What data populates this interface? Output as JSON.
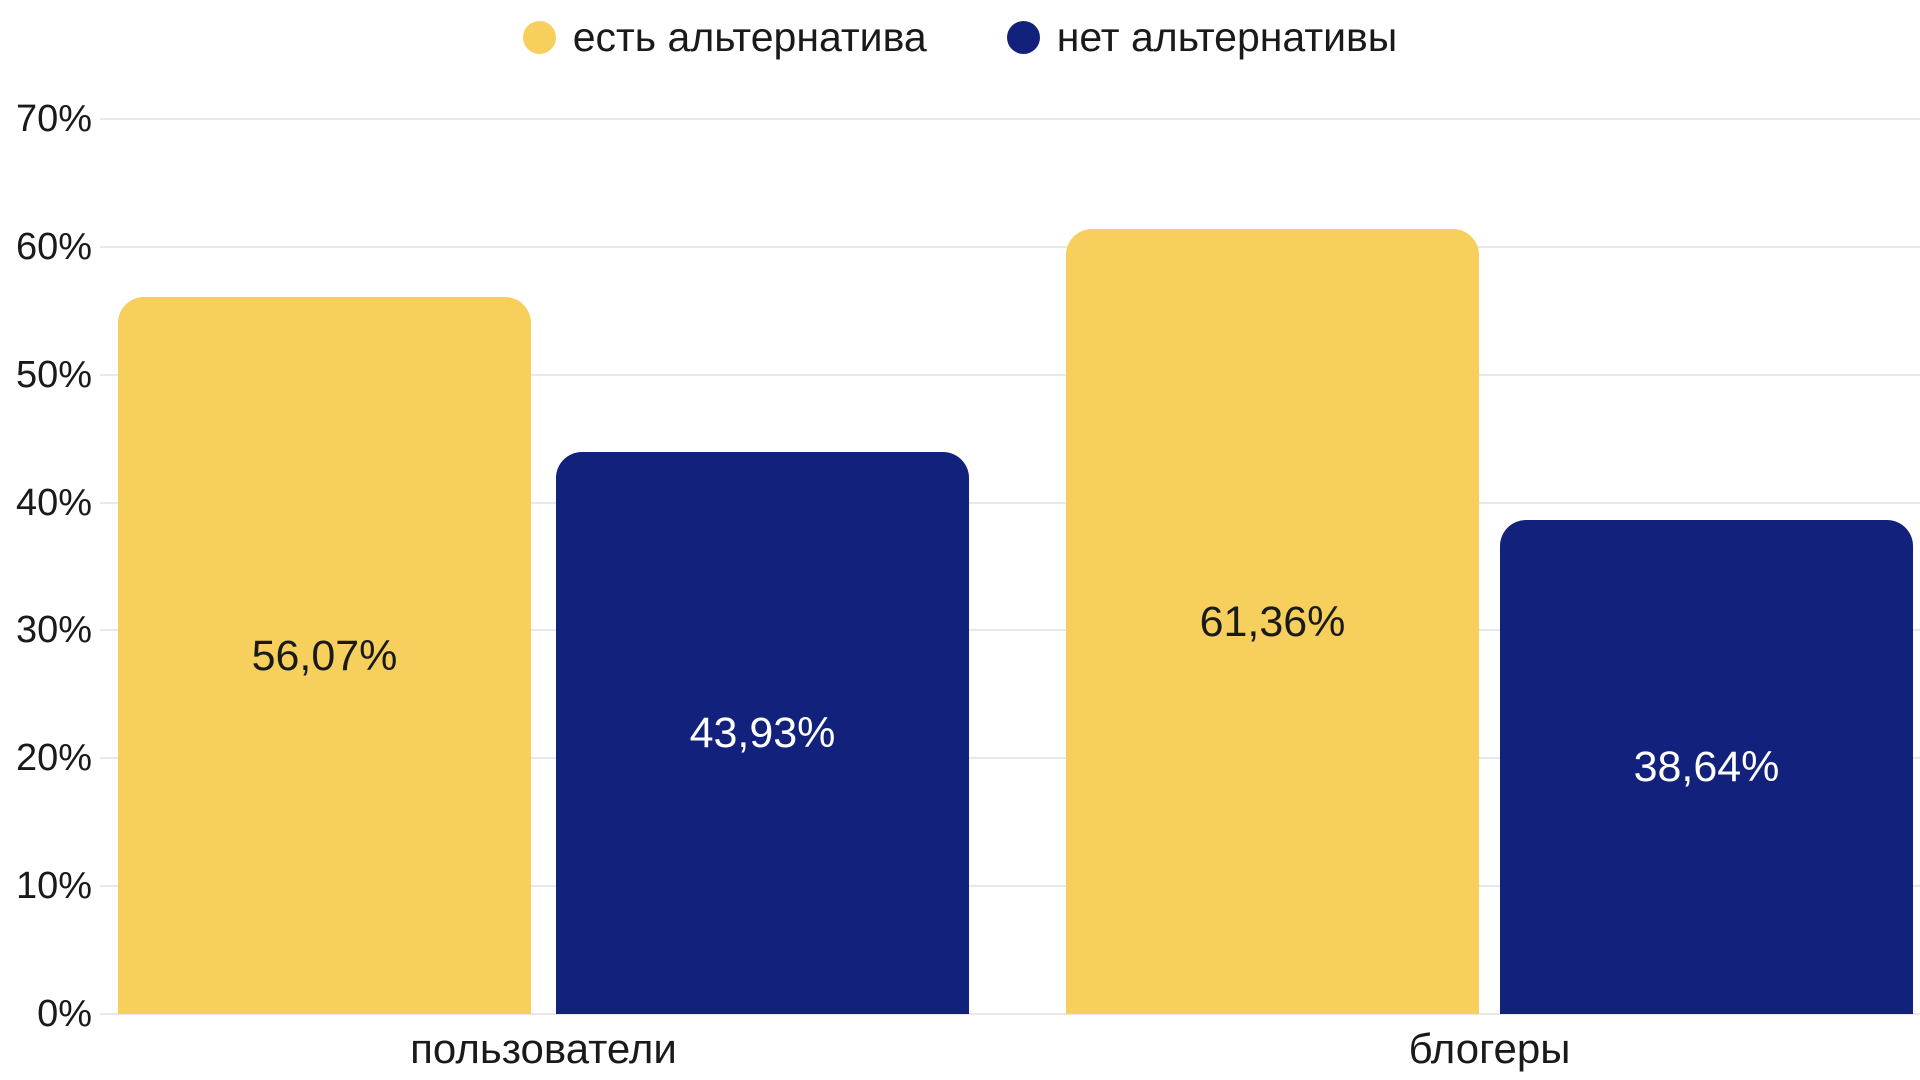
{
  "chart_data": {
    "type": "bar",
    "title": "",
    "categories": [
      "пользователи",
      "блогеры"
    ],
    "series": [
      {
        "name": "есть альтернатива",
        "values": [
          56.07,
          61.36
        ],
        "value_labels": [
          "56,07%",
          "61,36%"
        ],
        "color": "#F6CF5D",
        "value_label_color": "#1A1A1A"
      },
      {
        "name": "нет альтернативы",
        "values": [
          43.93,
          38.64
        ],
        "value_labels": [
          "43,93%",
          "38,64%"
        ],
        "color": "#12217B",
        "value_label_color": "#FFFFFF"
      }
    ],
    "ylim": [
      0,
      70
    ],
    "y_ticks": [
      {
        "value": 70,
        "label": "70%"
      },
      {
        "value": 60,
        "label": "60%"
      },
      {
        "value": 50,
        "label": "50%"
      },
      {
        "value": 40,
        "label": "40%"
      },
      {
        "value": 30,
        "label": "30%"
      },
      {
        "value": 20,
        "label": "20%"
      },
      {
        "value": 10,
        "label": "10%"
      },
      {
        "value": 0,
        "label": "0%"
      }
    ],
    "grid": true,
    "legend_position": "top"
  },
  "colors": {
    "background": "#FFFFFF",
    "gridline": "#E8E8E8",
    "axis_text": "#1A1A1A"
  }
}
